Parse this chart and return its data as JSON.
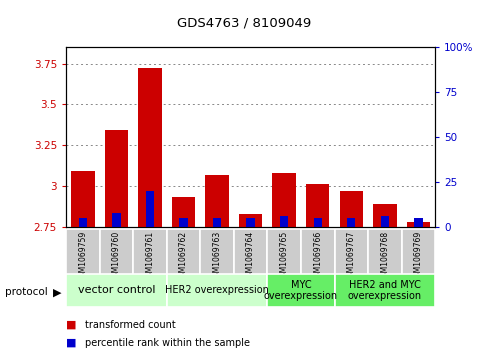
{
  "title": "GDS4763 / 8109049",
  "samples": [
    "GSM1069759",
    "GSM1069760",
    "GSM1069761",
    "GSM1069762",
    "GSM1069763",
    "GSM1069764",
    "GSM1069765",
    "GSM1069766",
    "GSM1069767",
    "GSM1069768",
    "GSM1069769"
  ],
  "transformed_count": [
    3.09,
    3.34,
    3.72,
    2.93,
    3.07,
    2.83,
    3.08,
    3.01,
    2.97,
    2.89,
    2.78
  ],
  "percentile_rank": [
    5,
    8,
    20,
    5,
    5,
    5,
    6,
    5,
    5,
    6,
    5
  ],
  "bar_base": 2.75,
  "ylim_left": [
    2.75,
    3.85
  ],
  "ylim_right": [
    0,
    100
  ],
  "yticks_left": [
    2.75,
    3.0,
    3.25,
    3.5,
    3.75
  ],
  "ytick_labels_left": [
    "2.75",
    "3",
    "3.25",
    "3.5",
    "3.75"
  ],
  "yticks_right": [
    0,
    25,
    50,
    75,
    100
  ],
  "ytick_labels_right": [
    "0",
    "25",
    "50",
    "75",
    "100%"
  ],
  "groups": [
    {
      "label": "vector control",
      "start": 0,
      "end": 3,
      "color": "#ccffcc",
      "fontsize": 8
    },
    {
      "label": "HER2 overexpression",
      "start": 3,
      "end": 6,
      "color": "#ccffcc",
      "fontsize": 7
    },
    {
      "label": "MYC\noverexpression",
      "start": 6,
      "end": 8,
      "color": "#66ee66",
      "fontsize": 7
    },
    {
      "label": "HER2 and MYC\noverexpression",
      "start": 8,
      "end": 11,
      "color": "#66ee66",
      "fontsize": 7
    }
  ],
  "legend_red": "transformed count",
  "legend_blue": "percentile rank within the sample",
  "red_color": "#cc0000",
  "blue_color": "#0000cc",
  "bar_width": 0.7,
  "blue_bar_width": 0.25,
  "grid_dotted_color": "#888888",
  "background_color": "#ffffff",
  "sample_bg_color": "#cccccc",
  "protocol_label": "protocol"
}
